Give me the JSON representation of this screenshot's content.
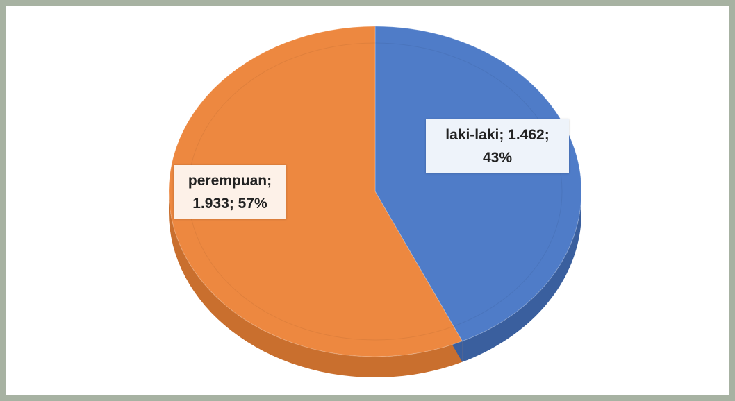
{
  "chart_data": {
    "type": "pie",
    "values": [
      1462,
      1933
    ],
    "value_labels": [
      "laki-laki; 1.462; 43%",
      "perempuan; 1.933; 57%"
    ],
    "colors": [
      "#4f7cc8",
      "#ed8840"
    ],
    "side_colors": [
      "#3a5f9e",
      "#c96f2e"
    ],
    "label_backgrounds": [
      "#eef3fa",
      "#fdf1e8"
    ]
  }
}
